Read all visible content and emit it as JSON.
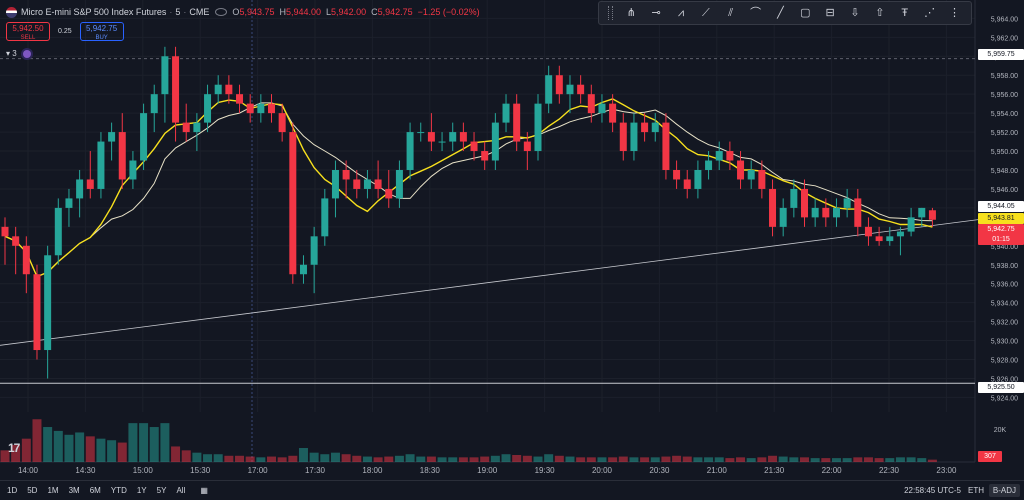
{
  "legend": {
    "symbol": "Micro E-mini S&P 500 Index Futures",
    "interval": "5",
    "exchange": "CME",
    "open_label": "O",
    "open": "5,943.75",
    "high_label": "H",
    "high": "5,944.00",
    "low_label": "L",
    "low": "5,942.00",
    "close_label": "C",
    "close": "5,942.75",
    "change": "−1.25 (−0.02%)"
  },
  "trade": {
    "sell_price": "5,942.50",
    "sell_label": "SELL",
    "spread": "0.25",
    "buy_price": "5,942.75",
    "buy_label": "BUY"
  },
  "indicator_count": "3",
  "drawing_tools": [
    "grip-icon",
    "pitchfork-icon",
    "ray-icon",
    "brush-icon",
    "trend-line-icon",
    "parallel-channel-icon",
    "path-icon",
    "line-icon",
    "rectangle-icon",
    "long-position-icon",
    "arrow-down-icon",
    "arrow-up-icon",
    "text-icon",
    "measure-icon",
    "more-icon"
  ],
  "price_axis": {
    "ticks": [
      "5,964.00",
      "5,962.00",
      "5,960.00",
      "5,958.00",
      "5,956.00",
      "5,954.00",
      "5,952.00",
      "5,950.00",
      "5,948.00",
      "5,946.00",
      "5,944.00",
      "5,942.00",
      "5,940.00",
      "5,938.00",
      "5,936.00",
      "5,934.00",
      "5,932.00",
      "5,930.00",
      "5,928.00",
      "5,926.00",
      "5,924.00"
    ],
    "volume_tick": "20K"
  },
  "price_labels": {
    "upper_line": "5,959.75",
    "ma_slow": "5,944.05",
    "ma_fast": "5,943.81",
    "last": "5,942.75",
    "countdown": "01:15",
    "lower_line": "5,925.50",
    "volume": "307"
  },
  "time_axis": [
    "14:00",
    "14:30",
    "15:00",
    "15:30",
    "17:00",
    "17:30",
    "18:00",
    "18:30",
    "19:00",
    "19:30",
    "20:00",
    "20:30",
    "21:00",
    "21:30",
    "22:00",
    "22:30",
    "23:00"
  ],
  "bottom_bar": {
    "ranges": [
      "1D",
      "5D",
      "1M",
      "3M",
      "6M",
      "YTD",
      "1Y",
      "5Y",
      "All"
    ],
    "clock": "22:58:45 UTC-5",
    "session": "ETH",
    "adjust": "B-ADJ"
  },
  "logo": "17",
  "colors": {
    "up": "#26a69a",
    "down": "#f23645",
    "ma_fast": "#f7e01d",
    "ma_slow": "#e8e2c8",
    "background": "#131722"
  },
  "chart_data": {
    "type": "candlestick",
    "interval": "5",
    "ylim": [
      5923.2,
      5965.2
    ],
    "horizontal_lines": [
      5959.75,
      5925.5
    ],
    "ohlc": [
      [
        5942,
        5943,
        5938,
        5941
      ],
      [
        5941,
        5942,
        5937,
        5940
      ],
      [
        5940,
        5941,
        5935,
        5937
      ],
      [
        5937,
        5938,
        5928,
        5929
      ],
      [
        5929,
        5940,
        5926,
        5939
      ],
      [
        5939,
        5945,
        5938,
        5944
      ],
      [
        5944,
        5946,
        5942,
        5945
      ],
      [
        5945,
        5948,
        5943,
        5947
      ],
      [
        5947,
        5950,
        5945,
        5946
      ],
      [
        5946,
        5952,
        5945,
        5951
      ],
      [
        5951,
        5953,
        5949,
        5952
      ],
      [
        5952,
        5954,
        5946,
        5947
      ],
      [
        5947,
        5950,
        5946,
        5949
      ],
      [
        5949,
        5955,
        5948,
        5954
      ],
      [
        5954,
        5957,
        5952,
        5956
      ],
      [
        5956,
        5961,
        5953,
        5960
      ],
      [
        5960,
        5961,
        5951,
        5953
      ],
      [
        5953,
        5955,
        5951,
        5952
      ],
      [
        5952,
        5954,
        5950,
        5953
      ],
      [
        5953,
        5957,
        5952,
        5956
      ],
      [
        5956,
        5958,
        5955,
        5957
      ],
      [
        5957,
        5958,
        5955,
        5956
      ],
      [
        5956,
        5957,
        5954,
        5955
      ],
      [
        5955,
        5956,
        5953,
        5954
      ],
      [
        5954,
        5956,
        5953,
        5955
      ],
      [
        5955,
        5956,
        5953,
        5954
      ],
      [
        5954,
        5955,
        5951,
        5952
      ],
      [
        5952,
        5953,
        5936,
        5937
      ],
      [
        5937,
        5939,
        5936,
        5938
      ],
      [
        5938,
        5942,
        5935,
        5941
      ],
      [
        5941,
        5946,
        5940,
        5945
      ],
      [
        5945,
        5949,
        5943,
        5948
      ],
      [
        5948,
        5949,
        5945,
        5947
      ],
      [
        5947,
        5948,
        5945,
        5946
      ],
      [
        5946,
        5948,
        5945,
        5947
      ],
      [
        5947,
        5949,
        5945,
        5946
      ],
      [
        5946,
        5948,
        5944,
        5945
      ],
      [
        5945,
        5949,
        5944,
        5948
      ],
      [
        5948,
        5953,
        5947,
        5952
      ],
      [
        5952,
        5953,
        5951,
        5952
      ],
      [
        5952,
        5954,
        5950,
        5951
      ],
      [
        5951,
        5952,
        5950,
        5951
      ],
      [
        5951,
        5953,
        5950,
        5952
      ],
      [
        5952,
        5953,
        5950,
        5951
      ],
      [
        5951,
        5952,
        5949,
        5950
      ],
      [
        5950,
        5951,
        5948,
        5949
      ],
      [
        5949,
        5954,
        5948,
        5953
      ],
      [
        5953,
        5956,
        5952,
        5955
      ],
      [
        5955,
        5956,
        5950,
        5951
      ],
      [
        5951,
        5952,
        5948,
        5950
      ],
      [
        5950,
        5956,
        5949,
        5955
      ],
      [
        5955,
        5959,
        5954,
        5958
      ],
      [
        5958,
        5959,
        5955,
        5956
      ],
      [
        5956,
        5958,
        5954,
        5957
      ],
      [
        5957,
        5958,
        5955,
        5956
      ],
      [
        5956,
        5957,
        5953,
        5954
      ],
      [
        5954,
        5956,
        5953,
        5955
      ],
      [
        5955,
        5956,
        5952,
        5953
      ],
      [
        5953,
        5954,
        5949,
        5950
      ],
      [
        5950,
        5954,
        5949,
        5953
      ],
      [
        5953,
        5954,
        5951,
        5952
      ],
      [
        5952,
        5954,
        5951,
        5953
      ],
      [
        5953,
        5954,
        5947,
        5948
      ],
      [
        5948,
        5949,
        5946,
        5947
      ],
      [
        5947,
        5948,
        5945,
        5946
      ],
      [
        5946,
        5949,
        5945,
        5948
      ],
      [
        5948,
        5950,
        5947,
        5949
      ],
      [
        5949,
        5951,
        5948,
        5950
      ],
      [
        5950,
        5951,
        5948,
        5949
      ],
      [
        5949,
        5950,
        5946,
        5947
      ],
      [
        5947,
        5949,
        5946,
        5948
      ],
      [
        5948,
        5949,
        5945,
        5946
      ],
      [
        5946,
        5947,
        5941,
        5942
      ],
      [
        5942,
        5945,
        5941,
        5944
      ],
      [
        5944,
        5947,
        5943,
        5946
      ],
      [
        5946,
        5947,
        5942,
        5943
      ],
      [
        5943,
        5945,
        5942,
        5944
      ],
      [
        5944,
        5945,
        5942,
        5943
      ],
      [
        5943,
        5945,
        5942,
        5944
      ],
      [
        5944,
        5946,
        5943,
        5945
      ],
      [
        5945,
        5946,
        5941,
        5942
      ],
      [
        5942,
        5943,
        5940,
        5941
      ],
      [
        5941,
        5942,
        5940,
        5940.5
      ],
      [
        5940.5,
        5942,
        5940,
        5941
      ],
      [
        5941,
        5942,
        5939,
        5941.5
      ],
      [
        5941.5,
        5944,
        5941,
        5943
      ],
      [
        5943,
        5944,
        5942,
        5944
      ],
      [
        5943.75,
        5944,
        5942,
        5942.75
      ]
    ],
    "volume_max": 22000,
    "volume_relative": [
      0.15,
      0.22,
      0.3,
      0.55,
      0.45,
      0.4,
      0.35,
      0.38,
      0.33,
      0.3,
      0.28,
      0.25,
      0.5,
      0.5,
      0.45,
      0.5,
      0.2,
      0.15,
      0.12,
      0.1,
      0.1,
      0.08,
      0.08,
      0.07,
      0.06,
      0.07,
      0.06,
      0.08,
      0.18,
      0.12,
      0.1,
      0.12,
      0.1,
      0.08,
      0.07,
      0.06,
      0.07,
      0.08,
      0.1,
      0.07,
      0.07,
      0.06,
      0.06,
      0.06,
      0.06,
      0.07,
      0.08,
      0.1,
      0.09,
      0.08,
      0.07,
      0.1,
      0.08,
      0.07,
      0.06,
      0.06,
      0.06,
      0.06,
      0.07,
      0.06,
      0.06,
      0.06,
      0.07,
      0.08,
      0.07,
      0.06,
      0.06,
      0.06,
      0.05,
      0.06,
      0.05,
      0.06,
      0.08,
      0.07,
      0.06,
      0.06,
      0.05,
      0.05,
      0.05,
      0.05,
      0.06,
      0.06,
      0.05,
      0.05,
      0.06,
      0.06,
      0.05,
      0.03
    ]
  }
}
